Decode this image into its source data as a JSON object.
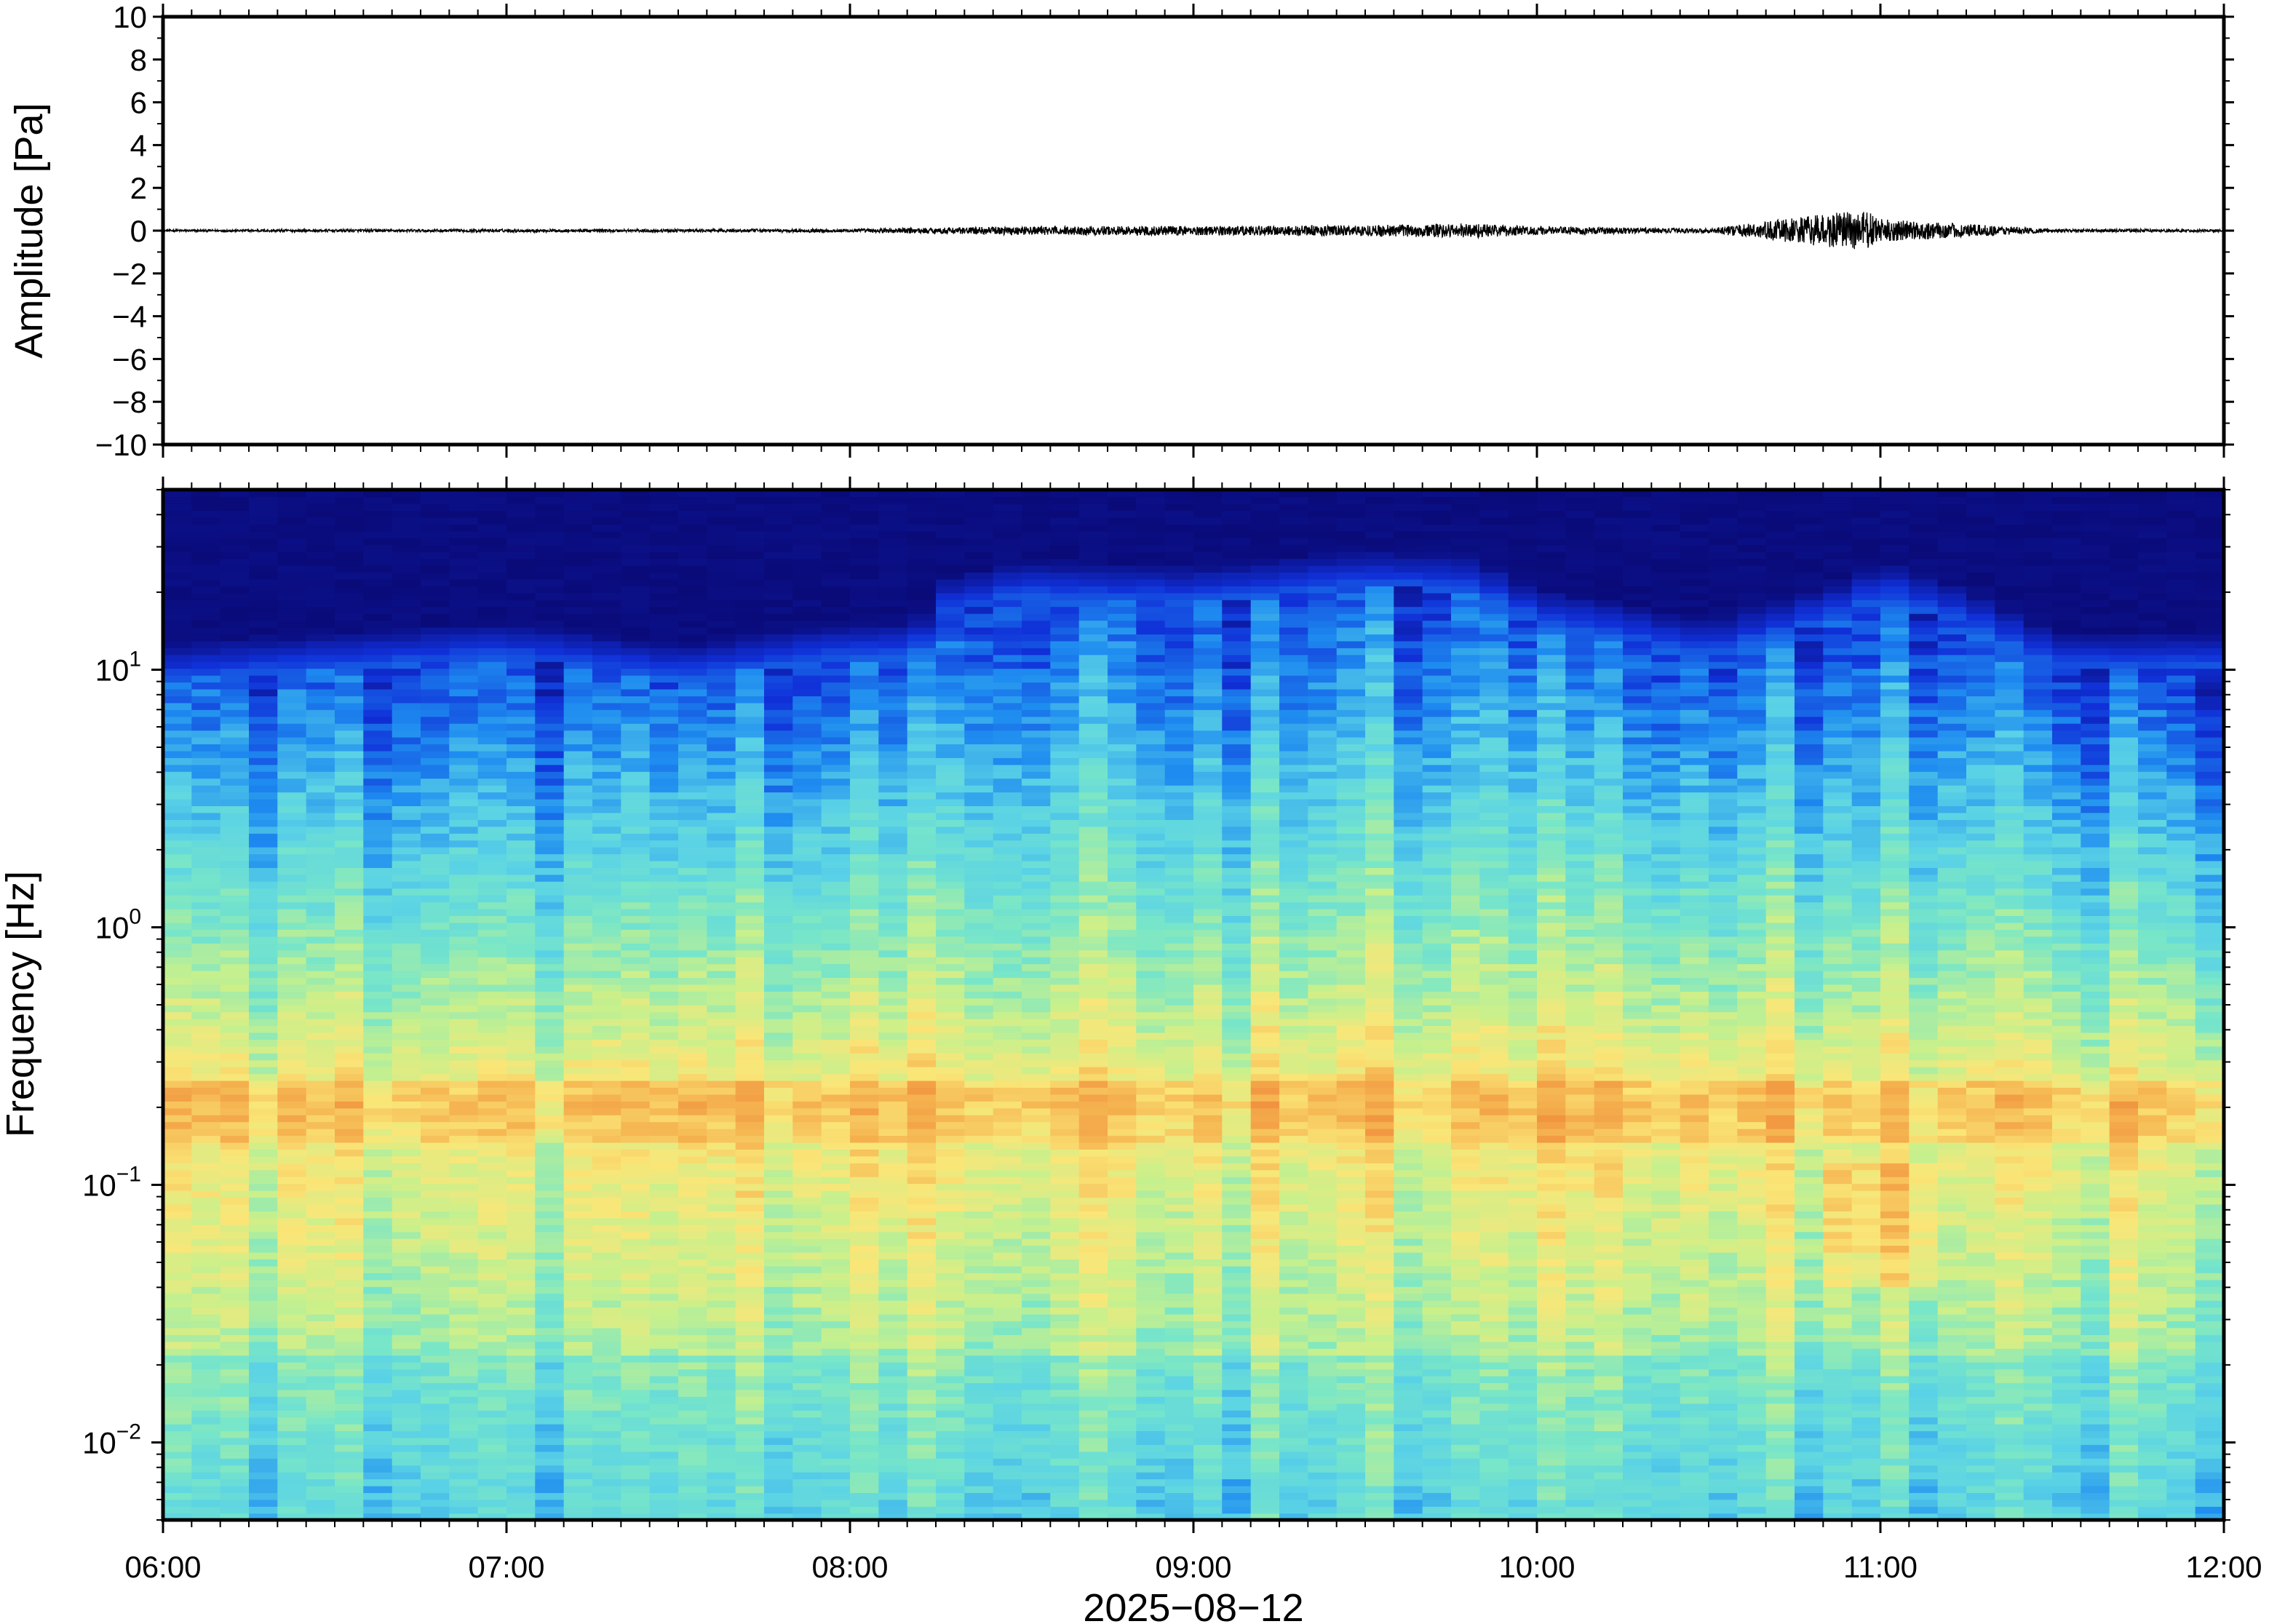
{
  "chart_data": [
    {
      "type": "line",
      "title": "",
      "xlabel": "",
      "ylabel": "Amplitude [Pa]",
      "ylim": [
        -10,
        10
      ],
      "yticks": [
        10,
        8,
        6,
        4,
        2,
        0,
        -2,
        -4,
        -6,
        -8,
        -10
      ],
      "ytick_labels": [
        "10",
        "8",
        "6",
        "4",
        "2",
        "0",
        "−2",
        "−4",
        "−6",
        "−8",
        "−10"
      ],
      "xlim_hours": [
        6,
        12
      ],
      "grid": false,
      "line_color": "#000000",
      "series": [
        {
          "x_hours": [
            6.0,
            6.5,
            7.0,
            7.5,
            8.0,
            8.5,
            9.0,
            9.5,
            9.8,
            10.0,
            10.5,
            10.95,
            11.0,
            11.2,
            11.5,
            12.0
          ],
          "amplitude_envelope_pa": [
            0.05,
            0.06,
            0.07,
            0.07,
            0.08,
            0.2,
            0.22,
            0.25,
            0.35,
            0.2,
            0.1,
            1.0,
            0.55,
            0.35,
            0.08,
            0.06
          ]
        }
      ]
    },
    {
      "type": "heatmap",
      "title": "",
      "xlabel": "2025−08−12",
      "ylabel": "Frequency [Hz]",
      "yscale": "log",
      "ylim": [
        0.005,
        50
      ],
      "yticks": [
        0.01,
        0.1,
        1,
        10
      ],
      "ytick_labels": [
        {
          "base": "10",
          "exp": "−2"
        },
        {
          "base": "10",
          "exp": "−1"
        },
        {
          "base": "10",
          "exp": "0"
        },
        {
          "base": "10",
          "exp": "1"
        }
      ],
      "xlim_hours": [
        6,
        12
      ],
      "xticks_hours": [
        6,
        7,
        8,
        9,
        10,
        11,
        12
      ],
      "xtick_labels": [
        "06:00",
        "07:00",
        "08:00",
        "09:00",
        "10:00",
        "11:00",
        "12:00"
      ],
      "colormap": [
        "#0a0a78",
        "#1030d8",
        "#1e8cf0",
        "#5ad2e6",
        "#78e6c8",
        "#c8f08c",
        "#fae678",
        "#f5b450",
        "#f08c3c"
      ],
      "upper_cutoff_hz": {
        "x_hours": [
          6.0,
          6.5,
          7.0,
          7.5,
          8.0,
          8.2,
          8.25,
          8.5,
          9.0,
          9.5,
          9.8,
          10.0,
          10.5,
          10.9,
          11.0,
          11.3,
          11.5,
          12.0
        ],
        "hz": [
          9,
          10,
          11,
          9,
          11,
          11,
          16,
          19,
          18,
          21,
          20,
          15,
          11,
          16,
          19,
          14,
          10,
          10
        ]
      },
      "energy_band_hz": {
        "low": 0.15,
        "high": 0.25
      },
      "low_frequency_burst": {
        "x_hours": [
          10.8,
          11.2
        ],
        "hz": [
          0.04,
          0.12
        ]
      },
      "grid": false
    }
  ]
}
